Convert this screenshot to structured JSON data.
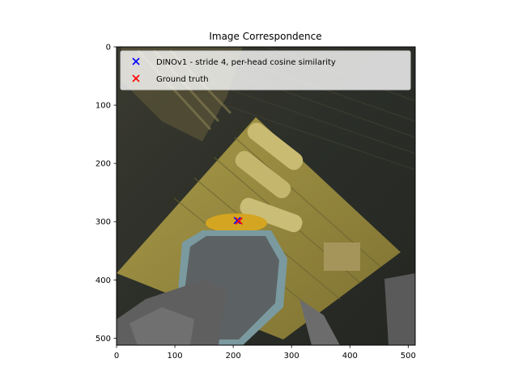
{
  "chart_data": {
    "type": "scatter",
    "title": "Image Correspondence",
    "xlabel": "",
    "ylabel": "",
    "xlim": [
      0,
      512
    ],
    "ylim": [
      512,
      0
    ],
    "y_inverted": true,
    "x_ticks": [
      0,
      100,
      200,
      300,
      400,
      500
    ],
    "y_ticks": [
      0,
      100,
      200,
      300,
      400,
      500
    ],
    "grid": false,
    "legend_position": "top-right",
    "background": "photographic image (512x512) showing a yellow wooden crate on a dark wooden floor with grey rocks",
    "series": [
      {
        "name": "DINOv1 - stride 4, per-head cosine similarity",
        "marker": "x",
        "color": "#0000ff",
        "points": [
          {
            "x": 207,
            "y": 298
          }
        ]
      },
      {
        "name": "Ground truth",
        "marker": "x",
        "color": "#ff0000",
        "points": [
          {
            "x": 210,
            "y": 299
          }
        ]
      }
    ]
  }
}
